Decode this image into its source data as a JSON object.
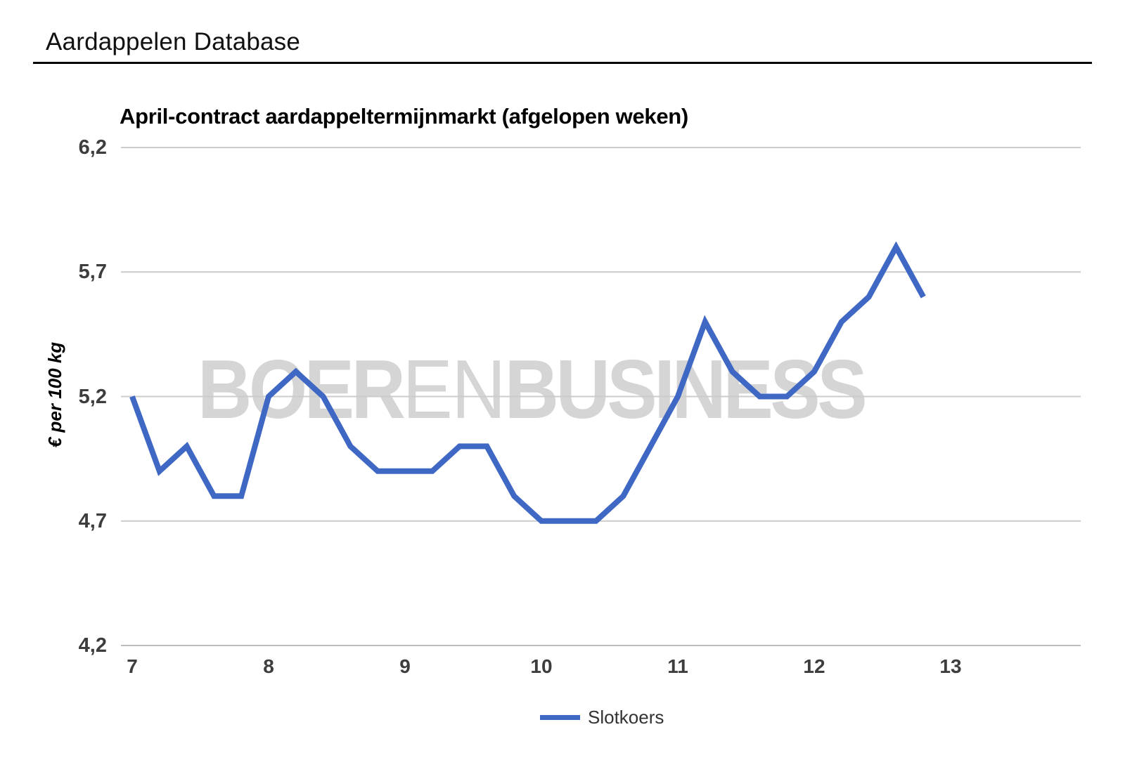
{
  "page": {
    "title": "Aardappelen Database"
  },
  "chart": {
    "title": "April-contract aardappeltermijnmarkt (afgelopen weken)",
    "y_axis_title": "€ per 100 kg",
    "legend": {
      "label": "Slotkoers"
    },
    "watermark": {
      "part1": "BOER",
      "part2": "EN",
      "part3": "BUSINESS"
    },
    "colors": {
      "line": "#3F68C5",
      "gridline": "#CCCCCC",
      "baseline": "#BDBDBD",
      "tick_label": "#3D3D3D",
      "watermark": "#D5D5D5",
      "legend_label": "#333333"
    }
  },
  "chart_data": {
    "type": "line",
    "title": "April-contract aardappeltermijnmarkt (afgelopen weken)",
    "xlabel": "",
    "ylabel": "€ per 100 kg",
    "x": [
      7.0,
      7.2,
      7.4,
      7.6,
      7.8,
      8.0,
      8.2,
      8.4,
      8.6,
      8.8,
      9.0,
      9.2,
      9.4,
      9.6,
      9.8,
      10.0,
      10.2,
      10.4,
      10.6,
      10.8,
      11.0,
      11.2,
      11.4,
      11.6,
      11.8,
      12.0,
      12.2,
      12.4,
      12.6,
      12.8
    ],
    "series": [
      {
        "name": "Slotkoers",
        "values": [
          5.2,
          4.9,
          5.0,
          4.8,
          4.8,
          5.2,
          5.3,
          5.2,
          5.0,
          4.9,
          4.9,
          4.9,
          5.0,
          5.0,
          4.8,
          4.7,
          4.7,
          4.7,
          4.8,
          5.0,
          5.2,
          5.5,
          5.3,
          5.2,
          5.2,
          5.3,
          5.5,
          5.6,
          5.8,
          5.6
        ]
      }
    ],
    "x_ticks": [
      7,
      8,
      9,
      10,
      11,
      12,
      13
    ],
    "y_ticks": [
      {
        "value": 6.2,
        "label": "6,2"
      },
      {
        "value": 5.7,
        "label": "5,7"
      },
      {
        "value": 5.2,
        "label": "5,2"
      },
      {
        "value": 4.7,
        "label": "4,7"
      },
      {
        "value": 4.2,
        "label": "4,2"
      }
    ],
    "xlim": [
      6.9,
      14.0
    ],
    "ylim": [
      4.2,
      6.2
    ],
    "grid": true,
    "legend_position": "bottom"
  }
}
